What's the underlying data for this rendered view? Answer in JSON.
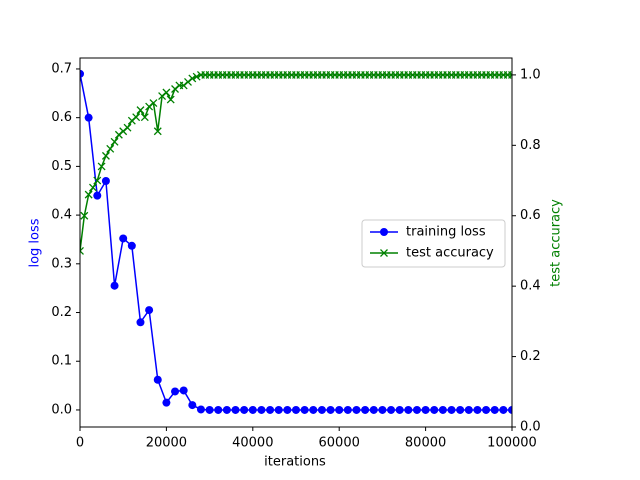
{
  "chart_data": {
    "type": "line",
    "xlabel": "iterations",
    "ylabel": "log loss",
    "y2label": "test accuracy",
    "xlim": [
      0,
      100000
    ],
    "xticks": [
      0,
      20000,
      40000,
      60000,
      80000,
      100000
    ],
    "ylim": [
      -0.035,
      0.7225
    ],
    "yticks": [
      {
        "value": 0,
        "label": "0.0"
      },
      0.1,
      0.2,
      0.3,
      0.4,
      0.5,
      0.6,
      0.7
    ],
    "y2lim": [
      0,
      1.048
    ],
    "y2ticks": [
      {
        "value": 0,
        "label": "0.0"
      },
      0.2,
      0.4,
      0.6,
      0.8,
      {
        "value": 1,
        "label": "1.0"
      }
    ],
    "legend": "center right",
    "series": [
      {
        "name": "training loss",
        "color": "#0000ff",
        "marker": "o",
        "x": [
          0,
          2000,
          4000,
          6000,
          8000,
          10000,
          12000,
          14000,
          16000,
          18000,
          20000,
          22000,
          24000,
          26000,
          28000,
          30000,
          32000,
          34000,
          36000,
          38000,
          40000,
          42000,
          44000,
          46000,
          48000,
          50000,
          52000,
          54000,
          56000,
          58000,
          60000,
          62000,
          64000,
          66000,
          68000,
          70000,
          72000,
          74000,
          76000,
          78000,
          80000,
          82000,
          84000,
          86000,
          88000,
          90000,
          92000,
          94000,
          96000,
          98000,
          100000
        ],
        "values": [
          0.69,
          0.6,
          0.44,
          0.47,
          0.255,
          0.352,
          0.337,
          0.18,
          0.205,
          0.062,
          0.015,
          0.038,
          0.04,
          0.01,
          0.001,
          0,
          0,
          0,
          0,
          0,
          0,
          0,
          0,
          0,
          0,
          0,
          0,
          0,
          0,
          0,
          0,
          0,
          0,
          0,
          0,
          0,
          0,
          0,
          0,
          0,
          0,
          0,
          0,
          0,
          0,
          0,
          0,
          0,
          0,
          0,
          0
        ]
      },
      {
        "name": "test accuracy",
        "color": "#008000",
        "marker": "x",
        "axis": "y2",
        "x": [
          0,
          1000,
          2000,
          3000,
          4000,
          5000,
          6000,
          7000,
          8000,
          9000,
          10000,
          11000,
          12000,
          13000,
          14000,
          15000,
          16000,
          17000,
          18000,
          19000,
          20000,
          21000,
          22000,
          23000,
          24000,
          25000,
          26000,
          27000,
          28000,
          29000,
          30000,
          31000,
          32000,
          33000,
          34000,
          35000,
          36000,
          37000,
          38000,
          39000,
          40000,
          41000,
          42000,
          43000,
          44000,
          45000,
          46000,
          47000,
          48000,
          49000,
          50000,
          51000,
          52000,
          53000,
          54000,
          55000,
          56000,
          57000,
          58000,
          59000,
          60000,
          61000,
          62000,
          63000,
          64000,
          65000,
          66000,
          67000,
          68000,
          69000,
          70000,
          71000,
          72000,
          73000,
          74000,
          75000,
          76000,
          77000,
          78000,
          79000,
          80000,
          81000,
          82000,
          83000,
          84000,
          85000,
          86000,
          87000,
          88000,
          89000,
          90000,
          91000,
          92000,
          93000,
          94000,
          95000,
          96000,
          97000,
          98000,
          99000,
          100000
        ],
        "values": [
          0.5,
          0.6,
          0.66,
          0.68,
          0.7,
          0.74,
          0.77,
          0.79,
          0.81,
          0.83,
          0.84,
          0.85,
          0.87,
          0.88,
          0.9,
          0.88,
          0.91,
          0.92,
          0.84,
          0.94,
          0.95,
          0.93,
          0.96,
          0.97,
          0.97,
          0.98,
          0.99,
          0.995,
          1,
          1,
          1,
          1,
          1,
          1,
          1,
          1,
          1,
          1,
          1,
          1,
          1,
          1,
          1,
          1,
          1,
          1,
          1,
          1,
          1,
          1,
          1,
          1,
          1,
          1,
          1,
          1,
          1,
          1,
          1,
          1,
          1,
          1,
          1,
          1,
          1,
          1,
          1,
          1,
          1,
          1,
          1,
          1,
          1,
          1,
          1,
          1,
          1,
          1,
          1,
          1,
          1,
          1,
          1,
          1,
          1,
          1,
          1,
          1,
          1,
          1,
          1,
          1,
          1,
          1,
          1,
          1,
          1,
          1,
          1,
          1,
          1
        ]
      }
    ]
  }
}
